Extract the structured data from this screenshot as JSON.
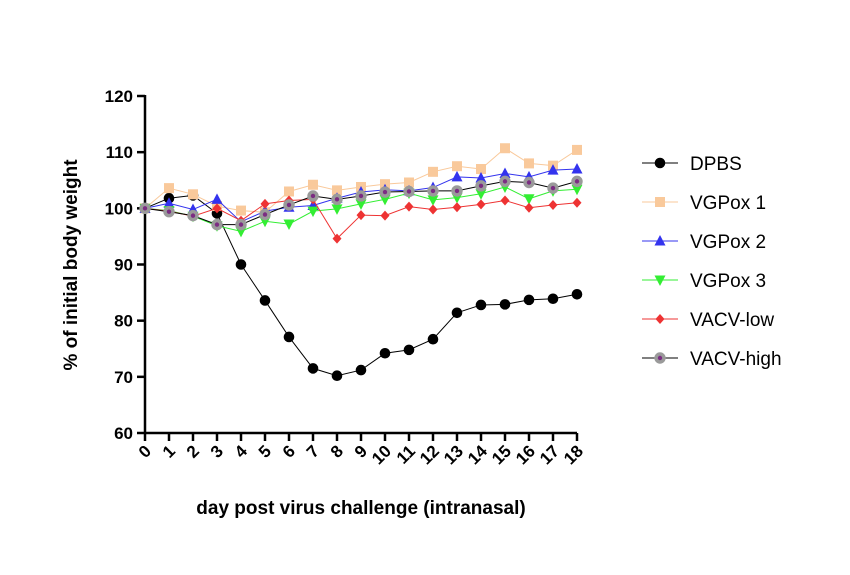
{
  "chart_data": {
    "type": "line",
    "title": "",
    "xlabel": "day post virus challenge (intranasal)",
    "ylabel": "% of initial body weight",
    "ylim": [
      60,
      120
    ],
    "yticks": [
      60,
      70,
      80,
      90,
      100,
      110,
      120
    ],
    "xlim": [
      0,
      18
    ],
    "xticks": [
      "0",
      "1",
      "2",
      "3",
      "4",
      "5",
      "6",
      "7",
      "8",
      "9",
      "10",
      "11",
      "12",
      "13",
      "14",
      "15",
      "16",
      "17",
      "18"
    ],
    "grid": false,
    "legend_position": "right",
    "x": [
      0,
      1,
      2,
      3,
      4,
      5,
      6,
      7,
      8,
      9,
      10,
      11,
      12,
      13,
      14,
      15,
      16,
      17,
      18
    ],
    "series": [
      {
        "name": "DPBS",
        "color": "#000000",
        "line_color": "#000000",
        "marker": "circle",
        "values": [
          100,
          101.8,
          102.3,
          99.1,
          90.0,
          83.6,
          77.1,
          71.5,
          70.2,
          71.2,
          74.2,
          74.8,
          76.7,
          81.4,
          82.8,
          82.9,
          83.7,
          83.9,
          84.7
        ]
      },
      {
        "name": "VGPox 1",
        "color": "#F9C99B",
        "line_color": "#F9C99B",
        "marker": "square",
        "values": [
          100,
          103.6,
          102.5,
          100.4,
          99.6,
          99.3,
          103.0,
          104.2,
          103.2,
          103.8,
          104.3,
          104.6,
          106.5,
          107.5,
          107.0,
          110.7,
          108.0,
          107.6,
          110.4
        ]
      },
      {
        "name": "VGPox 2",
        "color": "#3333EE",
        "line_color": "#3333EE",
        "marker": "triangle-up",
        "values": [
          100,
          100.9,
          99.8,
          101.6,
          97.6,
          99.5,
          100.2,
          100.5,
          101.8,
          102.9,
          103.3,
          103.1,
          103.7,
          105.6,
          105.4,
          106.2,
          105.6,
          106.8,
          107.0
        ]
      },
      {
        "name": "VGPox 3",
        "color": "#33EE33",
        "line_color": "#33EE33",
        "marker": "triangle-down",
        "values": [
          100,
          99.6,
          98.6,
          96.9,
          95.9,
          97.7,
          97.2,
          99.5,
          99.9,
          100.8,
          101.6,
          102.7,
          101.5,
          101.9,
          102.6,
          103.8,
          101.7,
          103.1,
          103.4
        ]
      },
      {
        "name": "VACV-low",
        "color": "#EE3333",
        "line_color": "#EE3333",
        "marker": "diamond",
        "values": [
          100,
          99.5,
          98.6,
          100.0,
          97.8,
          100.8,
          101.4,
          101.6,
          94.6,
          98.8,
          98.7,
          100.3,
          99.8,
          100.2,
          100.7,
          101.4,
          100.1,
          100.6,
          101.0
        ]
      },
      {
        "name": "VACV-high",
        "color": "#7B2D82",
        "line_color": "#000000",
        "marker": "circle-ring",
        "values": [
          100,
          99.4,
          98.7,
          97.1,
          97.1,
          98.9,
          100.6,
          102.2,
          101.6,
          102.2,
          102.9,
          103.0,
          103.1,
          103.1,
          104.0,
          104.8,
          104.6,
          103.6,
          104.8
        ]
      }
    ]
  }
}
